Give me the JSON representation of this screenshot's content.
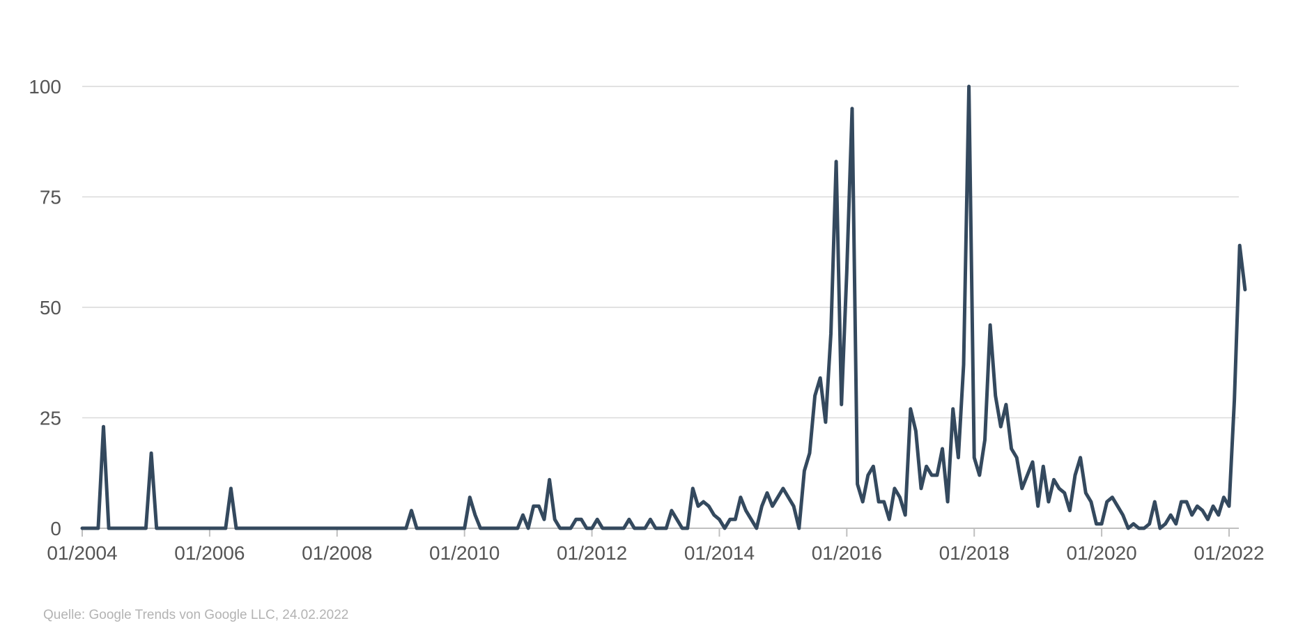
{
  "chart_data": {
    "type": "line",
    "title": "",
    "xlabel": "",
    "ylabel": "",
    "ylim": [
      0,
      100
    ],
    "yticks": [
      0,
      25,
      50,
      75,
      100
    ],
    "xlim": [
      "2004-01",
      "2022-02"
    ],
    "x_tick_labels": [
      "01/2004",
      "01/2006",
      "01/2008",
      "01/2010",
      "01/2012",
      "01/2014",
      "01/2016",
      "01/2018",
      "01/2020",
      "01/2022"
    ],
    "grid": "horizontal",
    "legend": "none",
    "series": [
      {
        "color": "#34495e",
        "points": [
          [
            "2004-01",
            0
          ],
          [
            "2004-02",
            0
          ],
          [
            "2004-03",
            0
          ],
          [
            "2004-04",
            0
          ],
          [
            "2004-05",
            23
          ],
          [
            "2004-06",
            0
          ],
          [
            "2005-01",
            0
          ],
          [
            "2005-02",
            17
          ],
          [
            "2005-03",
            0
          ],
          [
            "2006-04",
            0
          ],
          [
            "2006-05",
            9
          ],
          [
            "2006-06",
            0
          ],
          [
            "2009-02",
            0
          ],
          [
            "2009-03",
            4
          ],
          [
            "2009-04",
            0
          ],
          [
            "2010-01",
            0
          ],
          [
            "2010-02",
            7
          ],
          [
            "2010-03",
            3
          ],
          [
            "2010-04",
            0
          ],
          [
            "2010-11",
            0
          ],
          [
            "2010-12",
            3
          ],
          [
            "2011-01",
            0
          ],
          [
            "2011-02",
            5
          ],
          [
            "2011-03",
            5
          ],
          [
            "2011-04",
            2
          ],
          [
            "2011-05",
            11
          ],
          [
            "2011-06",
            2
          ],
          [
            "2011-07",
            0
          ],
          [
            "2011-08",
            0
          ],
          [
            "2011-09",
            0
          ],
          [
            "2011-10",
            2
          ],
          [
            "2011-11",
            2
          ],
          [
            "2011-12",
            0
          ],
          [
            "2012-01",
            0
          ],
          [
            "2012-02",
            2
          ],
          [
            "2012-03",
            0
          ],
          [
            "2012-04",
            0
          ],
          [
            "2012-05",
            0
          ],
          [
            "2012-06",
            0
          ],
          [
            "2012-07",
            0
          ],
          [
            "2012-08",
            2
          ],
          [
            "2012-09",
            0
          ],
          [
            "2012-10",
            0
          ],
          [
            "2012-11",
            0
          ],
          [
            "2012-12",
            2
          ],
          [
            "2013-01",
            0
          ],
          [
            "2013-02",
            0
          ],
          [
            "2013-03",
            0
          ],
          [
            "2013-04",
            4
          ],
          [
            "2013-05",
            2
          ],
          [
            "2013-06",
            0
          ],
          [
            "2013-07",
            0
          ],
          [
            "2013-08",
            9
          ],
          [
            "2013-09",
            5
          ],
          [
            "2013-10",
            6
          ],
          [
            "2013-11",
            5
          ],
          [
            "2013-12",
            3
          ],
          [
            "2014-01",
            2
          ],
          [
            "2014-02",
            0
          ],
          [
            "2014-03",
            2
          ],
          [
            "2014-04",
            2
          ],
          [
            "2014-05",
            7
          ],
          [
            "2014-06",
            4
          ],
          [
            "2014-07",
            2
          ],
          [
            "2014-08",
            0
          ],
          [
            "2014-09",
            5
          ],
          [
            "2014-10",
            8
          ],
          [
            "2014-11",
            5
          ],
          [
            "2014-12",
            7
          ],
          [
            "2015-01",
            9
          ],
          [
            "2015-02",
            7
          ],
          [
            "2015-03",
            5
          ],
          [
            "2015-04",
            0
          ],
          [
            "2015-05",
            13
          ],
          [
            "2015-06",
            17
          ],
          [
            "2015-07",
            30
          ],
          [
            "2015-08",
            34
          ],
          [
            "2015-09",
            24
          ],
          [
            "2015-10",
            44
          ],
          [
            "2015-11",
            83
          ],
          [
            "2015-12",
            28
          ],
          [
            "2016-01",
            58
          ],
          [
            "2016-02",
            95
          ],
          [
            "2016-03",
            10
          ],
          [
            "2016-04",
            6
          ],
          [
            "2016-05",
            12
          ],
          [
            "2016-06",
            14
          ],
          [
            "2016-07",
            6
          ],
          [
            "2016-08",
            6
          ],
          [
            "2016-09",
            2
          ],
          [
            "2016-10",
            9
          ],
          [
            "2016-11",
            7
          ],
          [
            "2016-12",
            3
          ],
          [
            "2017-01",
            27
          ],
          [
            "2017-02",
            22
          ],
          [
            "2017-03",
            9
          ],
          [
            "2017-04",
            14
          ],
          [
            "2017-05",
            12
          ],
          [
            "2017-06",
            12
          ],
          [
            "2017-07",
            18
          ],
          [
            "2017-08",
            6
          ],
          [
            "2017-09",
            27
          ],
          [
            "2017-10",
            16
          ],
          [
            "2017-11",
            37
          ],
          [
            "2017-12",
            100
          ],
          [
            "2018-01",
            16
          ],
          [
            "2018-02",
            12
          ],
          [
            "2018-03",
            20
          ],
          [
            "2018-04",
            46
          ],
          [
            "2018-05",
            30
          ],
          [
            "2018-06",
            23
          ],
          [
            "2018-07",
            28
          ],
          [
            "2018-08",
            18
          ],
          [
            "2018-09",
            16
          ],
          [
            "2018-10",
            9
          ],
          [
            "2018-11",
            12
          ],
          [
            "2018-12",
            15
          ],
          [
            "2019-01",
            5
          ],
          [
            "2019-02",
            14
          ],
          [
            "2019-03",
            6
          ],
          [
            "2019-04",
            11
          ],
          [
            "2019-05",
            9
          ],
          [
            "2019-06",
            8
          ],
          [
            "2019-07",
            4
          ],
          [
            "2019-08",
            12
          ],
          [
            "2019-09",
            16
          ],
          [
            "2019-10",
            8
          ],
          [
            "2019-11",
            6
          ],
          [
            "2019-12",
            1
          ],
          [
            "2020-01",
            1
          ],
          [
            "2020-02",
            6
          ],
          [
            "2020-03",
            7
          ],
          [
            "2020-04",
            5
          ],
          [
            "2020-05",
            3
          ],
          [
            "2020-06",
            0
          ],
          [
            "2020-07",
            1
          ],
          [
            "2020-08",
            0
          ],
          [
            "2020-09",
            0
          ],
          [
            "2020-10",
            1
          ],
          [
            "2020-11",
            6
          ],
          [
            "2020-12",
            0
          ],
          [
            "2021-01",
            1
          ],
          [
            "2021-02",
            3
          ],
          [
            "2021-03",
            1
          ],
          [
            "2021-04",
            6
          ],
          [
            "2021-05",
            6
          ],
          [
            "2021-06",
            3
          ],
          [
            "2021-07",
            5
          ],
          [
            "2021-08",
            4
          ],
          [
            "2021-09",
            2
          ],
          [
            "2021-10",
            5
          ],
          [
            "2021-11",
            3
          ],
          [
            "2021-12",
            7
          ],
          [
            "2022-01",
            5
          ],
          [
            "2022-02",
            29
          ],
          [
            "2022-03",
            64
          ],
          [
            "2022-04",
            54
          ]
        ]
      }
    ]
  },
  "footer": {
    "source": "Quelle: Google Trends von Google LLC, 24.02.2022"
  }
}
